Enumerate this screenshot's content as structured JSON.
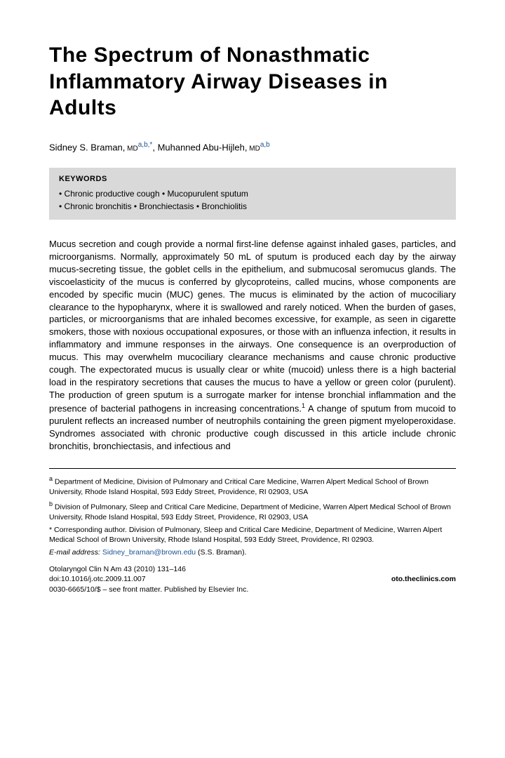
{
  "title": "The Spectrum of Nonasthmatic Inflammatory Airway Diseases in Adults",
  "authors": {
    "a1_name": "Sidney S. Braman,",
    "a1_deg": " MD",
    "a1_aff": "a,b,",
    "a1_corr": "*",
    "sep": ", ",
    "a2_name": "Muhanned Abu-Hijleh,",
    "a2_deg": " MD",
    "a2_aff": "a,b"
  },
  "keywords": {
    "heading": "KEYWORDS",
    "line1": "• Chronic productive cough • Mucopurulent sputum",
    "line2": "• Chronic bronchitis • Bronchiectasis • Bronchiolitis"
  },
  "body": "Mucus secretion and cough provide a normal first-line defense against inhaled gases, particles, and microorganisms. Normally, approximately 50 mL of sputum is produced each day by the airway mucus-secreting tissue, the goblet cells in the epithelium, and submucosal seromucus glands. The viscoelasticity of the mucus is conferred by glycoproteins, called mucins, whose components are encoded by specific mucin (MUC) genes. The mucus is eliminated by the action of mucociliary clearance to the hypopharynx, where it is swallowed and rarely noticed. When the burden of gases, particles, or microorganisms that are inhaled becomes excessive, for example, as seen in cigarette smokers, those with noxious occupational exposures, or those with an influenza infection, it results in inflammatory and immune responses in the airways. One consequence is an overproduction of mucus. This may overwhelm mucociliary clearance mechanisms and cause chronic productive cough. The expectorated mucus is usually clear or white (mucoid) unless there is a high bacterial load in the respiratory secretions that causes the mucus to have a yellow or green color (purulent). The production of green sputum is a surrogate marker for intense bronchial inflammation and the presence of bacterial pathogens in increasing concentrations.",
  "body_ref": "1",
  "body_tail": " A change of sputum from mucoid to purulent reflects an increased number of neutrophils containing the green pigment myeloperoxidase. Syndromes associated with chronic productive cough discussed in this article include chronic bronchitis, bronchiectasis, and infectious and",
  "footnotes": {
    "a_label": "a",
    "a_text": " Department of Medicine, Division of Pulmonary and Critical Care Medicine, Warren Alpert Medical School of Brown University, Rhode Island Hospital, 593 Eddy Street, Providence, RI 02903, USA",
    "b_label": "b",
    "b_text": " Division of Pulmonary, Sleep and Critical Care Medicine, Department of Medicine, Warren Alpert Medical School of Brown University, Rhode Island Hospital, 593 Eddy Street, Providence, RI 02903, USA",
    "corr_label": "*",
    "corr_text": " Corresponding author. Division of Pulmonary, Sleep and Critical Care Medicine, Department of Medicine, Warren Alpert Medical School of Brown University, Rhode Island Hospital, 593 Eddy Street, Providence, RI 02903.",
    "email_label": "E-mail address:",
    "email": "Sidney_braman@brown.edu",
    "email_tail": " (S.S. Braman)."
  },
  "journal": {
    "citation": "Otolaryngol Clin N Am 43 (2010) 131–146",
    "doi": "doi:10.1016/j.otc.2009.11.007",
    "site": "oto.theclinics.com",
    "copyright": "0030-6665/10/$ – see front matter. Published by Elsevier Inc."
  }
}
